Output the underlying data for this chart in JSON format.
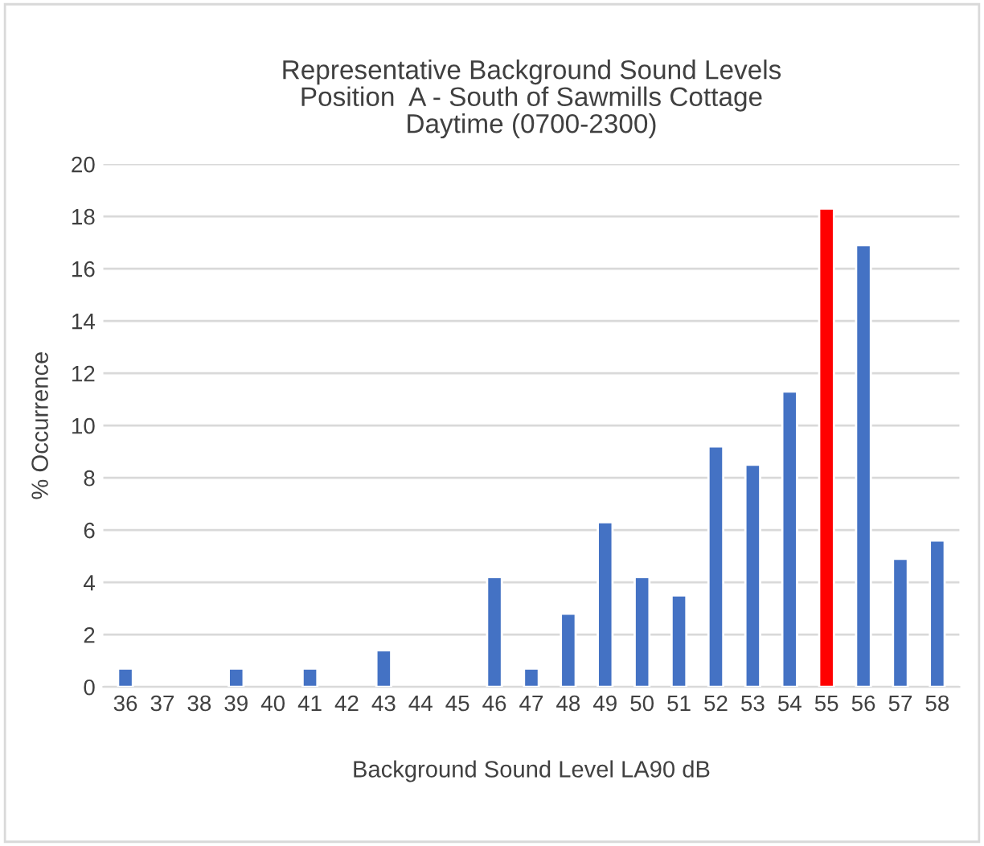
{
  "chart_data": {
    "type": "bar",
    "title": "Representative Background Sound Levels\nPosition  A - South of Sawmills Cottage\nDaytime (0700-2300)",
    "xlabel": "Background Sound Level LA90 dB",
    "ylabel": "% Occurrence",
    "categories": [
      "36",
      "37",
      "38",
      "39",
      "40",
      "41",
      "42",
      "43",
      "44",
      "45",
      "46",
      "47",
      "48",
      "49",
      "50",
      "51",
      "52",
      "53",
      "54",
      "55",
      "56",
      "57",
      "58"
    ],
    "values": [
      0.7,
      null,
      null,
      0.7,
      null,
      0.7,
      null,
      1.4,
      null,
      null,
      4.2,
      0.7,
      2.8,
      6.3,
      4.2,
      3.5,
      9.2,
      8.5,
      11.3,
      18.3,
      16.9,
      4.9,
      5.6
    ],
    "colors": [
      "#4472c4",
      "#4472c4",
      "#4472c4",
      "#4472c4",
      "#4472c4",
      "#4472c4",
      "#4472c4",
      "#4472c4",
      "#4472c4",
      "#4472c4",
      "#4472c4",
      "#4472c4",
      "#4472c4",
      "#4472c4",
      "#4472c4",
      "#4472c4",
      "#4472c4",
      "#4472c4",
      "#4472c4",
      "#ff0000",
      "#4472c4",
      "#4472c4",
      "#4472c4"
    ],
    "ylim": [
      0,
      20
    ],
    "yticks": [
      0,
      2,
      4,
      6,
      8,
      10,
      12,
      14,
      16,
      18,
      20
    ],
    "grid": "y",
    "legend": false
  }
}
